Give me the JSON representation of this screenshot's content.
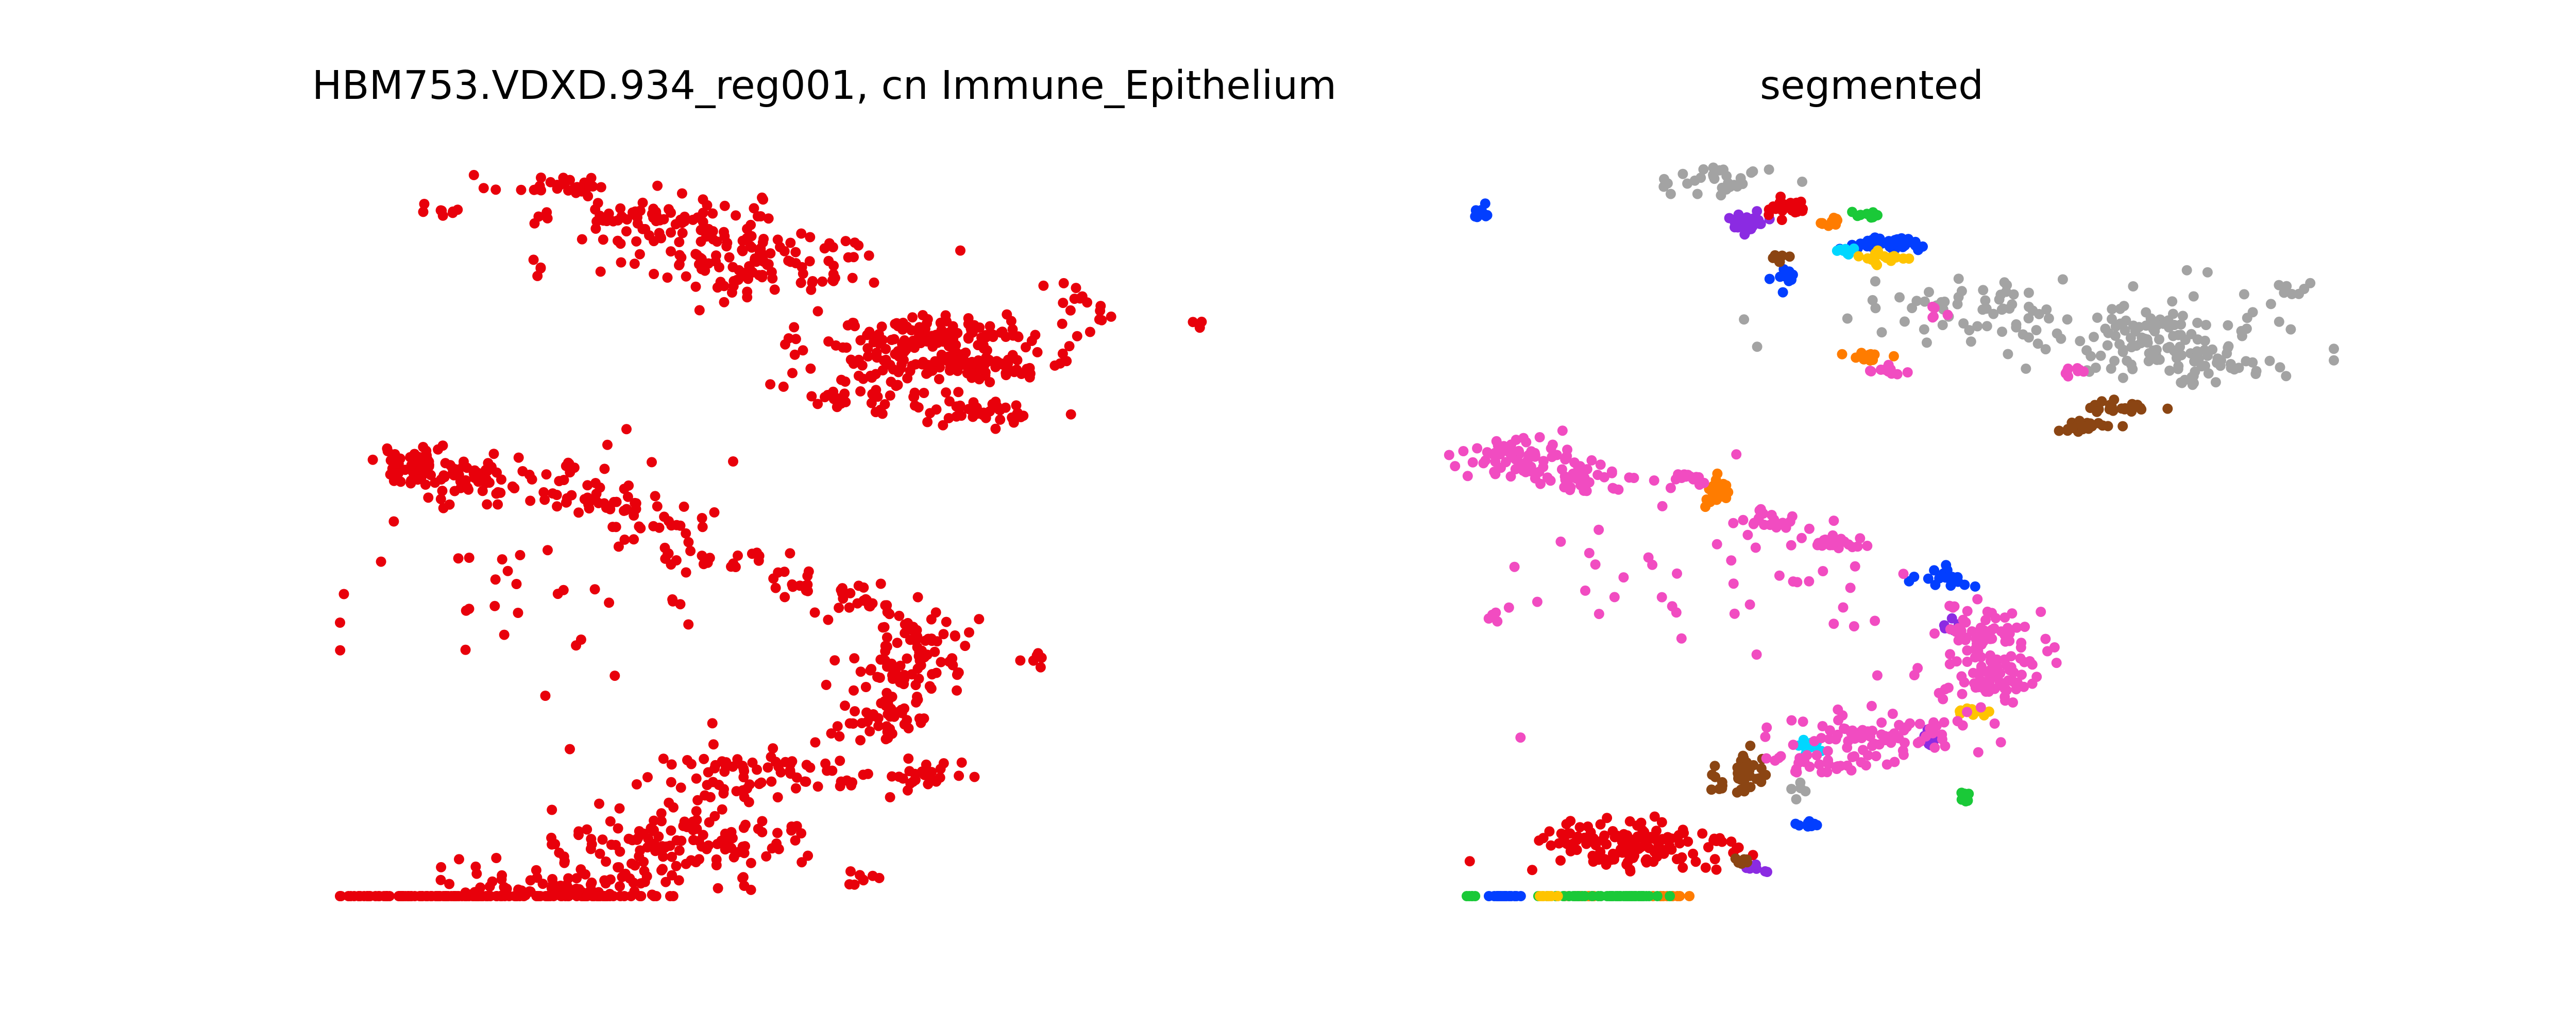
{
  "chart_data": [
    {
      "type": "scatter",
      "title": "HBM753.VDXD.934_reg001, cn Immune_Epithelium",
      "axes_visible": false,
      "xlim": [
        0,
        100
      ],
      "ylim": [
        0,
        100
      ],
      "series": [
        {
          "color": "#e8000b",
          "clusters": [
            {
              "cx": 9,
              "cy": 94,
              "sx": 2.0,
              "sy": 0.6,
              "n": 8
            },
            {
              "cx": 23,
              "cy": 97,
              "sx": 4,
              "sy": 0.8,
              "n": 30
            },
            {
              "cx": 35,
              "cy": 92,
              "sx": 6,
              "sy": 2,
              "n": 90
            },
            {
              "cx": 48,
              "cy": 86,
              "sx": 7,
              "sy": 2.5,
              "n": 110
            },
            {
              "cx": 68,
              "cy": 76,
              "sx": 7,
              "sy": 1.5,
              "n": 120
            },
            {
              "cx": 70,
              "cy": 72,
              "sx": 7,
              "sy": 1.2,
              "n": 110
            },
            {
              "cx": 60,
              "cy": 68,
              "sx": 5,
              "sy": 1.5,
              "n": 40
            },
            {
              "cx": 73,
              "cy": 65,
              "sx": 4,
              "sy": 1,
              "n": 40
            },
            {
              "cx": 85,
              "cy": 80,
              "sx": 3,
              "sy": 2,
              "n": 15
            },
            {
              "cx": 99,
              "cy": 78,
              "sx": 1,
              "sy": 0.6,
              "n": 3
            },
            {
              "cx": 21,
              "cy": 86,
              "sx": 1,
              "sy": 0.5,
              "n": 4
            },
            {
              "cx": 7,
              "cy": 58,
              "sx": 3,
              "sy": 1.3,
              "n": 50
            },
            {
              "cx": 13,
              "cy": 55,
              "sx": 4,
              "sy": 1.5,
              "n": 45
            },
            {
              "cx": 23,
              "cy": 57,
              "sx": 2,
              "sy": 1.5,
              "n": 10
            },
            {
              "cx": 28,
              "cy": 53,
              "sx": 3,
              "sy": 1.2,
              "n": 25
            },
            {
              "cx": 35,
              "cy": 50,
              "sx": 3,
              "sy": 1.5,
              "n": 25
            },
            {
              "cx": 42,
              "cy": 45,
              "sx": 3,
              "sy": 1.2,
              "n": 20
            },
            {
              "cx": 51,
              "cy": 41,
              "sx": 2,
              "sy": 1,
              "n": 14
            },
            {
              "cx": 59,
              "cy": 39,
              "sx": 2.5,
              "sy": 1,
              "n": 20
            },
            {
              "cx": 66,
              "cy": 34,
              "sx": 3,
              "sy": 2,
              "n": 40
            },
            {
              "cx": 64,
              "cy": 28,
              "sx": 4,
              "sy": 2,
              "n": 60
            },
            {
              "cx": 62,
              "cy": 22,
              "sx": 3,
              "sy": 1.5,
              "n": 40
            },
            {
              "cx": 67,
              "cy": 14,
              "sx": 2,
              "sy": 1,
              "n": 20
            },
            {
              "cx": 79,
              "cy": 30,
              "sx": 1.5,
              "sy": 0.8,
              "n": 6
            },
            {
              "cx": 20,
              "cy": 42,
              "sx": 12,
              "sy": 9,
              "n": 50
            },
            {
              "cx": 48,
              "cy": 14,
              "sx": 8,
              "sy": 2,
              "n": 80
            },
            {
              "cx": 38,
              "cy": 5,
              "sx": 7,
              "sy": 2.5,
              "n": 120
            },
            {
              "cx": 25,
              "cy": -2,
              "sx": 8,
              "sy": 2,
              "n": 120
            },
            {
              "cx": 12,
              "cy": -10,
              "sx": 6,
              "sy": 1.5,
              "n": 60
            },
            {
              "cx": 3,
              "cy": -19,
              "sx": 3,
              "sy": 1,
              "n": 30
            },
            {
              "cx": 28,
              "cy": -14,
              "sx": 2,
              "sy": 1,
              "n": 12
            },
            {
              "cx": 59,
              "cy": 0,
              "sx": 1.5,
              "sy": 1,
              "n": 8
            },
            {
              "cx": 1,
              "cy": -12,
              "sx": 1,
              "sy": 2,
              "n": 4
            }
          ]
        }
      ]
    },
    {
      "type": "scatter",
      "title": "segmented",
      "axes_visible": false,
      "xlim": [
        0,
        100
      ],
      "ylim": [
        0,
        100
      ],
      "series": [
        {
          "color": "#a3a3a3",
          "clusters": [
            {
              "cx": 30,
              "cy": 98,
              "sx": 4,
              "sy": 1,
              "n": 30
            },
            {
              "cx": 62,
              "cy": 80,
              "sx": 7,
              "sy": 2,
              "n": 60
            },
            {
              "cx": 80,
              "cy": 76,
              "sx": 7,
              "sy": 2,
              "n": 80
            },
            {
              "cx": 85,
              "cy": 72,
              "sx": 7,
              "sy": 1.5,
              "n": 60
            },
            {
              "cx": 96,
              "cy": 82,
              "sx": 4,
              "sy": 2,
              "n": 12
            },
            {
              "cx": 40,
              "cy": 12,
              "sx": 0.8,
              "sy": 0.8,
              "n": 5
            }
          ]
        },
        {
          "color": "#8b2be2",
          "clusters": [
            {
              "cx": 33,
              "cy": 92,
              "sx": 1.3,
              "sy": 0.8,
              "n": 25
            },
            {
              "cx": 57,
              "cy": 35,
              "sx": 0.8,
              "sy": 0.5,
              "n": 6
            },
            {
              "cx": 55,
              "cy": 19,
              "sx": 0.6,
              "sy": 0.6,
              "n": 8
            },
            {
              "cx": 35,
              "cy": 1,
              "sx": 1,
              "sy": 0.4,
              "n": 6
            }
          ]
        },
        {
          "color": "#e8000b",
          "clusters": [
            {
              "cx": 38,
              "cy": 94,
              "sx": 1.5,
              "sy": 0.8,
              "n": 30
            },
            {
              "cx": 20,
              "cy": 4,
              "sx": 6,
              "sy": 2,
              "n": 140
            }
          ]
        },
        {
          "color": "#ff7c00",
          "clusters": [
            {
              "cx": 43,
              "cy": 92,
              "sx": 1,
              "sy": 0.4,
              "n": 10
            },
            {
              "cx": 48,
              "cy": 73,
              "sx": 1.5,
              "sy": 0.5,
              "n": 10
            },
            {
              "cx": 30,
              "cy": 54,
              "sx": 0.8,
              "sy": 1.2,
              "n": 25
            },
            {
              "cx": 14,
              "cy": -10,
              "sx": 1.5,
              "sy": 0.5,
              "n": 12
            },
            {
              "cx": 24,
              "cy": -12,
              "sx": 1,
              "sy": 0.4,
              "n": 10
            }
          ]
        },
        {
          "color": "#1ac938",
          "clusters": [
            {
              "cx": 47,
              "cy": 93,
              "sx": 1.2,
              "sy": 0.3,
              "n": 10
            },
            {
              "cx": 19,
              "cy": -5,
              "sx": 2,
              "sy": 0.8,
              "n": 40
            },
            {
              "cx": 12,
              "cy": -9,
              "sx": 1.5,
              "sy": 0.6,
              "n": 12
            },
            {
              "cx": 1,
              "cy": -6,
              "sx": 0.5,
              "sy": 1,
              "n": 5
            },
            {
              "cx": 59,
              "cy": 11,
              "sx": 0.6,
              "sy": 0.4,
              "n": 8
            }
          ]
        },
        {
          "color": "#023eff",
          "clusters": [
            {
              "cx": 2,
              "cy": 93,
              "sx": 0.6,
              "sy": 0.6,
              "n": 10
            },
            {
              "cx": 50,
              "cy": 89,
              "sx": 2.5,
              "sy": 0.5,
              "n": 40
            },
            {
              "cx": 38,
              "cy": 84,
              "sx": 0.8,
              "sy": 0.6,
              "n": 10
            },
            {
              "cx": 57,
              "cy": 42,
              "sx": 1.5,
              "sy": 0.6,
              "n": 20
            },
            {
              "cx": 40,
              "cy": 7,
              "sx": 0.8,
              "sy": 0.3,
              "n": 8
            },
            {
              "cx": 5,
              "cy": -17,
              "sx": 1,
              "sy": 0.5,
              "n": 25
            }
          ]
        },
        {
          "color": "#8b4513",
          "clusters": [
            {
              "cx": 37,
              "cy": 87,
              "sx": 0.6,
              "sy": 0.4,
              "n": 6
            },
            {
              "cx": 77,
              "cy": 66,
              "sx": 2.5,
              "sy": 0.5,
              "n": 20
            },
            {
              "cx": 72,
              "cy": 63,
              "sx": 2.5,
              "sy": 0.5,
              "n": 20
            },
            {
              "cx": 33,
              "cy": 14,
              "sx": 1.5,
              "sy": 1.5,
              "n": 40
            },
            {
              "cx": 33,
              "cy": 2,
              "sx": 0.8,
              "sy": 0.4,
              "n": 6
            }
          ]
        },
        {
          "color": "#00d7ff",
          "clusters": [
            {
              "cx": 45,
              "cy": 88,
              "sx": 0.8,
              "sy": 0.3,
              "n": 8
            },
            {
              "cx": 41,
              "cy": 18,
              "sx": 1,
              "sy": 0.5,
              "n": 15
            }
          ]
        },
        {
          "color": "#ffc400",
          "clusters": [
            {
              "cx": 50,
              "cy": 87,
              "sx": 1.5,
              "sy": 0.5,
              "n": 20
            },
            {
              "cx": 60,
              "cy": 23,
              "sx": 1,
              "sy": 0.4,
              "n": 12
            },
            {
              "cx": 10,
              "cy": -18,
              "sx": 0.8,
              "sy": 0.3,
              "n": 8
            }
          ]
        },
        {
          "color": "#f14cc1",
          "clusters": [
            {
              "cx": 56,
              "cy": 79,
              "sx": 0.6,
              "sy": 0.4,
              "n": 5
            },
            {
              "cx": 50,
              "cy": 71,
              "sx": 1,
              "sy": 0.4,
              "n": 10
            },
            {
              "cx": 72,
              "cy": 71,
              "sx": 1,
              "sy": 0.4,
              "n": 8
            },
            {
              "cx": 6,
              "cy": 59,
              "sx": 3,
              "sy": 1.3,
              "n": 60
            },
            {
              "cx": 13,
              "cy": 56,
              "sx": 3,
              "sy": 1,
              "n": 40
            },
            {
              "cx": 26,
              "cy": 56,
              "sx": 1.2,
              "sy": 0.6,
              "n": 15
            },
            {
              "cx": 36,
              "cy": 50,
              "sx": 2,
              "sy": 0.8,
              "n": 20
            },
            {
              "cx": 44,
              "cy": 47,
              "sx": 2,
              "sy": 0.7,
              "n": 20
            },
            {
              "cx": 62,
              "cy": 34,
              "sx": 2.5,
              "sy": 2,
              "n": 60
            },
            {
              "cx": 63,
              "cy": 28,
              "sx": 3,
              "sy": 2,
              "n": 70
            },
            {
              "cx": 48,
              "cy": 20,
              "sx": 6,
              "sy": 1.8,
              "n": 80
            },
            {
              "cx": 42,
              "cy": 16,
              "sx": 3,
              "sy": 0.8,
              "n": 30
            },
            {
              "cx": 30,
              "cy": 40,
              "sx": 14,
              "sy": 7,
              "n": 45
            },
            {
              "cx": 4,
              "cy": 37,
              "sx": 0.8,
              "sy": 1,
              "n": 5
            }
          ]
        }
      ]
    }
  ]
}
